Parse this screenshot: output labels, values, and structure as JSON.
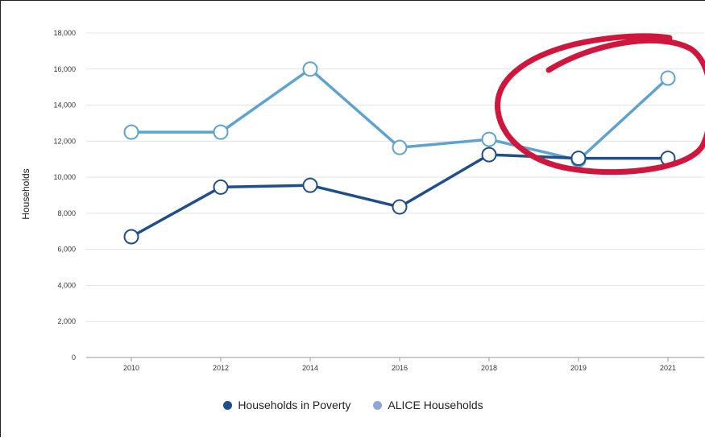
{
  "colors": {
    "poverty": "#1f4e8c",
    "alice": "#5ea3d0",
    "alice_legend": "#8fa6d6",
    "annotation": "#d0163c",
    "grid": "#e3e3e3"
  },
  "legend": {
    "poverty_label": "Households in Poverty",
    "alice_label": "ALICE Households"
  },
  "chart_data": {
    "type": "line",
    "title": "",
    "xlabel": "",
    "ylabel": "Households",
    "categories": [
      "2010",
      "2012",
      "2014",
      "2016",
      "2018",
      "2019",
      "2021"
    ],
    "ylim": [
      0,
      18000
    ],
    "yticks": [
      0,
      2000,
      4000,
      6000,
      8000,
      10000,
      12000,
      14000,
      16000,
      18000
    ],
    "ytick_labels": [
      "0",
      "2,000",
      "4,000",
      "6,000",
      "8,000",
      "10,000",
      "12,000",
      "14,000",
      "16,000",
      "18,000"
    ],
    "grid": "horizontal",
    "legend_position": "bottom",
    "series": [
      {
        "name": "Households in Poverty",
        "key": "poverty",
        "values": [
          6700,
          9450,
          9550,
          8350,
          11250,
          11050,
          11050
        ]
      },
      {
        "name": "ALICE Households",
        "key": "alice",
        "values": [
          12500,
          12500,
          16000,
          11650,
          12100,
          10950,
          15500
        ]
      }
    ],
    "annotation": {
      "shape": "hand-drawn ellipse",
      "highlights": [
        "2019",
        "2021"
      ]
    }
  }
}
